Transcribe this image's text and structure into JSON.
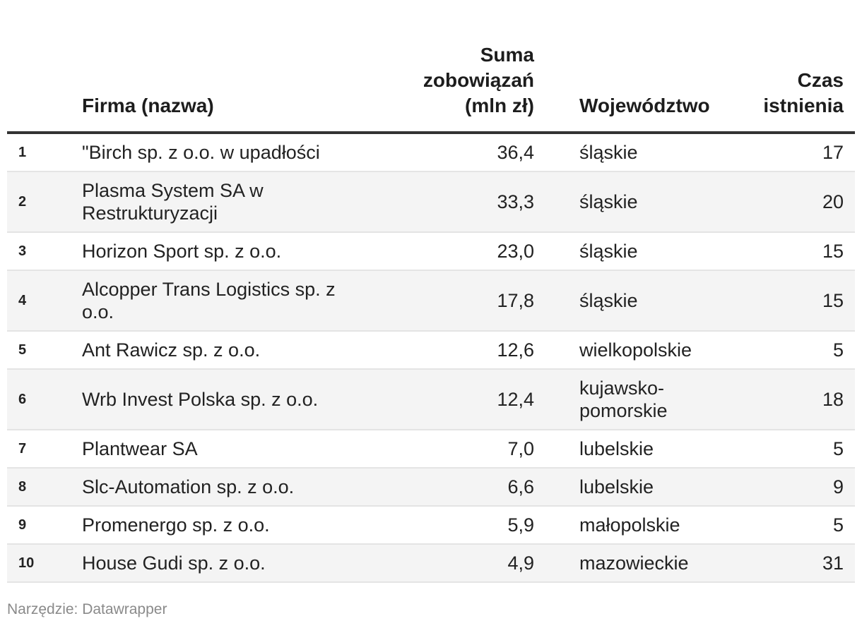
{
  "chart_data": {
    "type": "table",
    "columns": [
      {
        "key": "rank",
        "label": ""
      },
      {
        "key": "name",
        "label_lines": [
          "Firma (nazwa)"
        ]
      },
      {
        "key": "amount",
        "label_lines": [
          "Suma",
          "zobowiązań",
          "(mln zł)"
        ]
      },
      {
        "key": "voivodeship",
        "label_lines": [
          "Województwo"
        ]
      },
      {
        "key": "age",
        "label_lines": [
          "Czas",
          "istnienia"
        ]
      }
    ],
    "rows": [
      {
        "rank": "1",
        "name": "\"Birch sp. z o.o. w upadłości",
        "amount": "36,4",
        "voivodeship": "śląskie",
        "age": "17"
      },
      {
        "rank": "2",
        "name": "Plasma System SA w Restrukturyzacji",
        "amount": "33,3",
        "voivodeship": "śląskie",
        "age": "20"
      },
      {
        "rank": "3",
        "name": "Horizon Sport sp. z o.o.",
        "amount": "23,0",
        "voivodeship": "śląskie",
        "age": "15"
      },
      {
        "rank": "4",
        "name": "Alcopper Trans Logistics sp. z o.o.",
        "amount": "17,8",
        "voivodeship": "śląskie",
        "age": "15"
      },
      {
        "rank": "5",
        "name": "Ant Rawicz sp. z o.o.",
        "amount": "12,6",
        "voivodeship": "wielkopolskie",
        "age": "5"
      },
      {
        "rank": "6",
        "name": "Wrb Invest Polska sp. z o.o.",
        "amount": "12,4",
        "voivodeship": "kujawsko-pomorskie",
        "age": "18"
      },
      {
        "rank": "7",
        "name": "Plantwear SA",
        "amount": "7,0",
        "voivodeship": "lubelskie",
        "age": "5"
      },
      {
        "rank": "8",
        "name": "Slc-Automation sp. z o.o.",
        "amount": "6,6",
        "voivodeship": "lubelskie",
        "age": "9"
      },
      {
        "rank": "9",
        "name": "Promenergo sp. z o.o.",
        "amount": "5,9",
        "voivodeship": "małopolskie",
        "age": "5"
      },
      {
        "rank": "10",
        "name": "House Gudi sp. z o.o.",
        "amount": "4,9",
        "voivodeship": "mazowieckie",
        "age": "31"
      }
    ]
  },
  "footer": {
    "tool_credit": "Narzędzie: Datawrapper"
  }
}
